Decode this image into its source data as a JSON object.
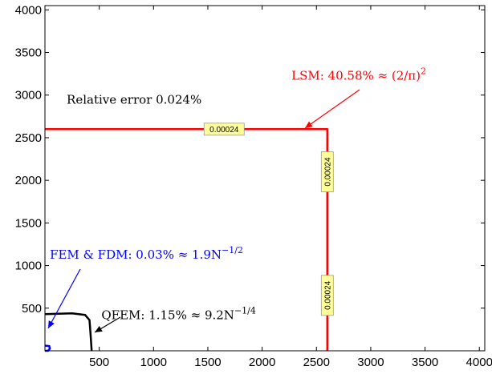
{
  "chart_data": {
    "type": "line",
    "title": "",
    "xlabel": "",
    "ylabel": "",
    "xlim": [
      0,
      4050
    ],
    "ylim": [
      0,
      4050
    ],
    "xticks": [
      500,
      1000,
      1500,
      2000,
      2500,
      3000,
      3500,
      4000
    ],
    "yticks": [
      500,
      1000,
      1500,
      2000,
      2500,
      3000,
      3500,
      4000
    ],
    "grid": false,
    "colors": {
      "lsm": "#ff0000",
      "qfem": "#000000",
      "fem_fdm": "#0000ff",
      "label_bg": "#ffff99"
    },
    "series": [
      {
        "id": "lsm",
        "x": [
          0,
          2600,
          2600
        ],
        "y": [
          2600,
          2600,
          0
        ]
      },
      {
        "id": "qfem",
        "x": [
          0,
          250,
          370,
          410,
          420,
          430
        ],
        "y": [
          430,
          440,
          420,
          360,
          200,
          0
        ]
      },
      {
        "id": "fem_fdm",
        "x": [
          0,
          40,
          45,
          30,
          0
        ],
        "y": [
          60,
          55,
          25,
          0,
          0
        ]
      }
    ],
    "contour_labels": [
      {
        "text": "0.00024",
        "x": 1650,
        "y": 2600,
        "angle": 0
      },
      {
        "text": "0.00024",
        "x": 2600,
        "y": 2100,
        "angle": -90
      },
      {
        "text": "0.00024",
        "x": 2600,
        "y": 650,
        "angle": -90
      }
    ],
    "annotations": [
      {
        "id": "rel_error",
        "text": "Relative error 0.024%",
        "x": 200,
        "y": 2900
      },
      {
        "id": "lsm",
        "text": "LSM: 40.58% ≈ (2/π)",
        "sup": "2",
        "x": 2270,
        "y": 3180
      },
      {
        "id": "fem_fdm",
        "text": "FEM & FDM: 0.03% ≈ 1.9N",
        "sup": "−1/2",
        "x": 45,
        "y": 1080
      },
      {
        "id": "qfem",
        "text": "QFEM: 1.15% ≈ 9.2N",
        "sup": "−1/4",
        "x": 520,
        "y": 370
      }
    ]
  }
}
